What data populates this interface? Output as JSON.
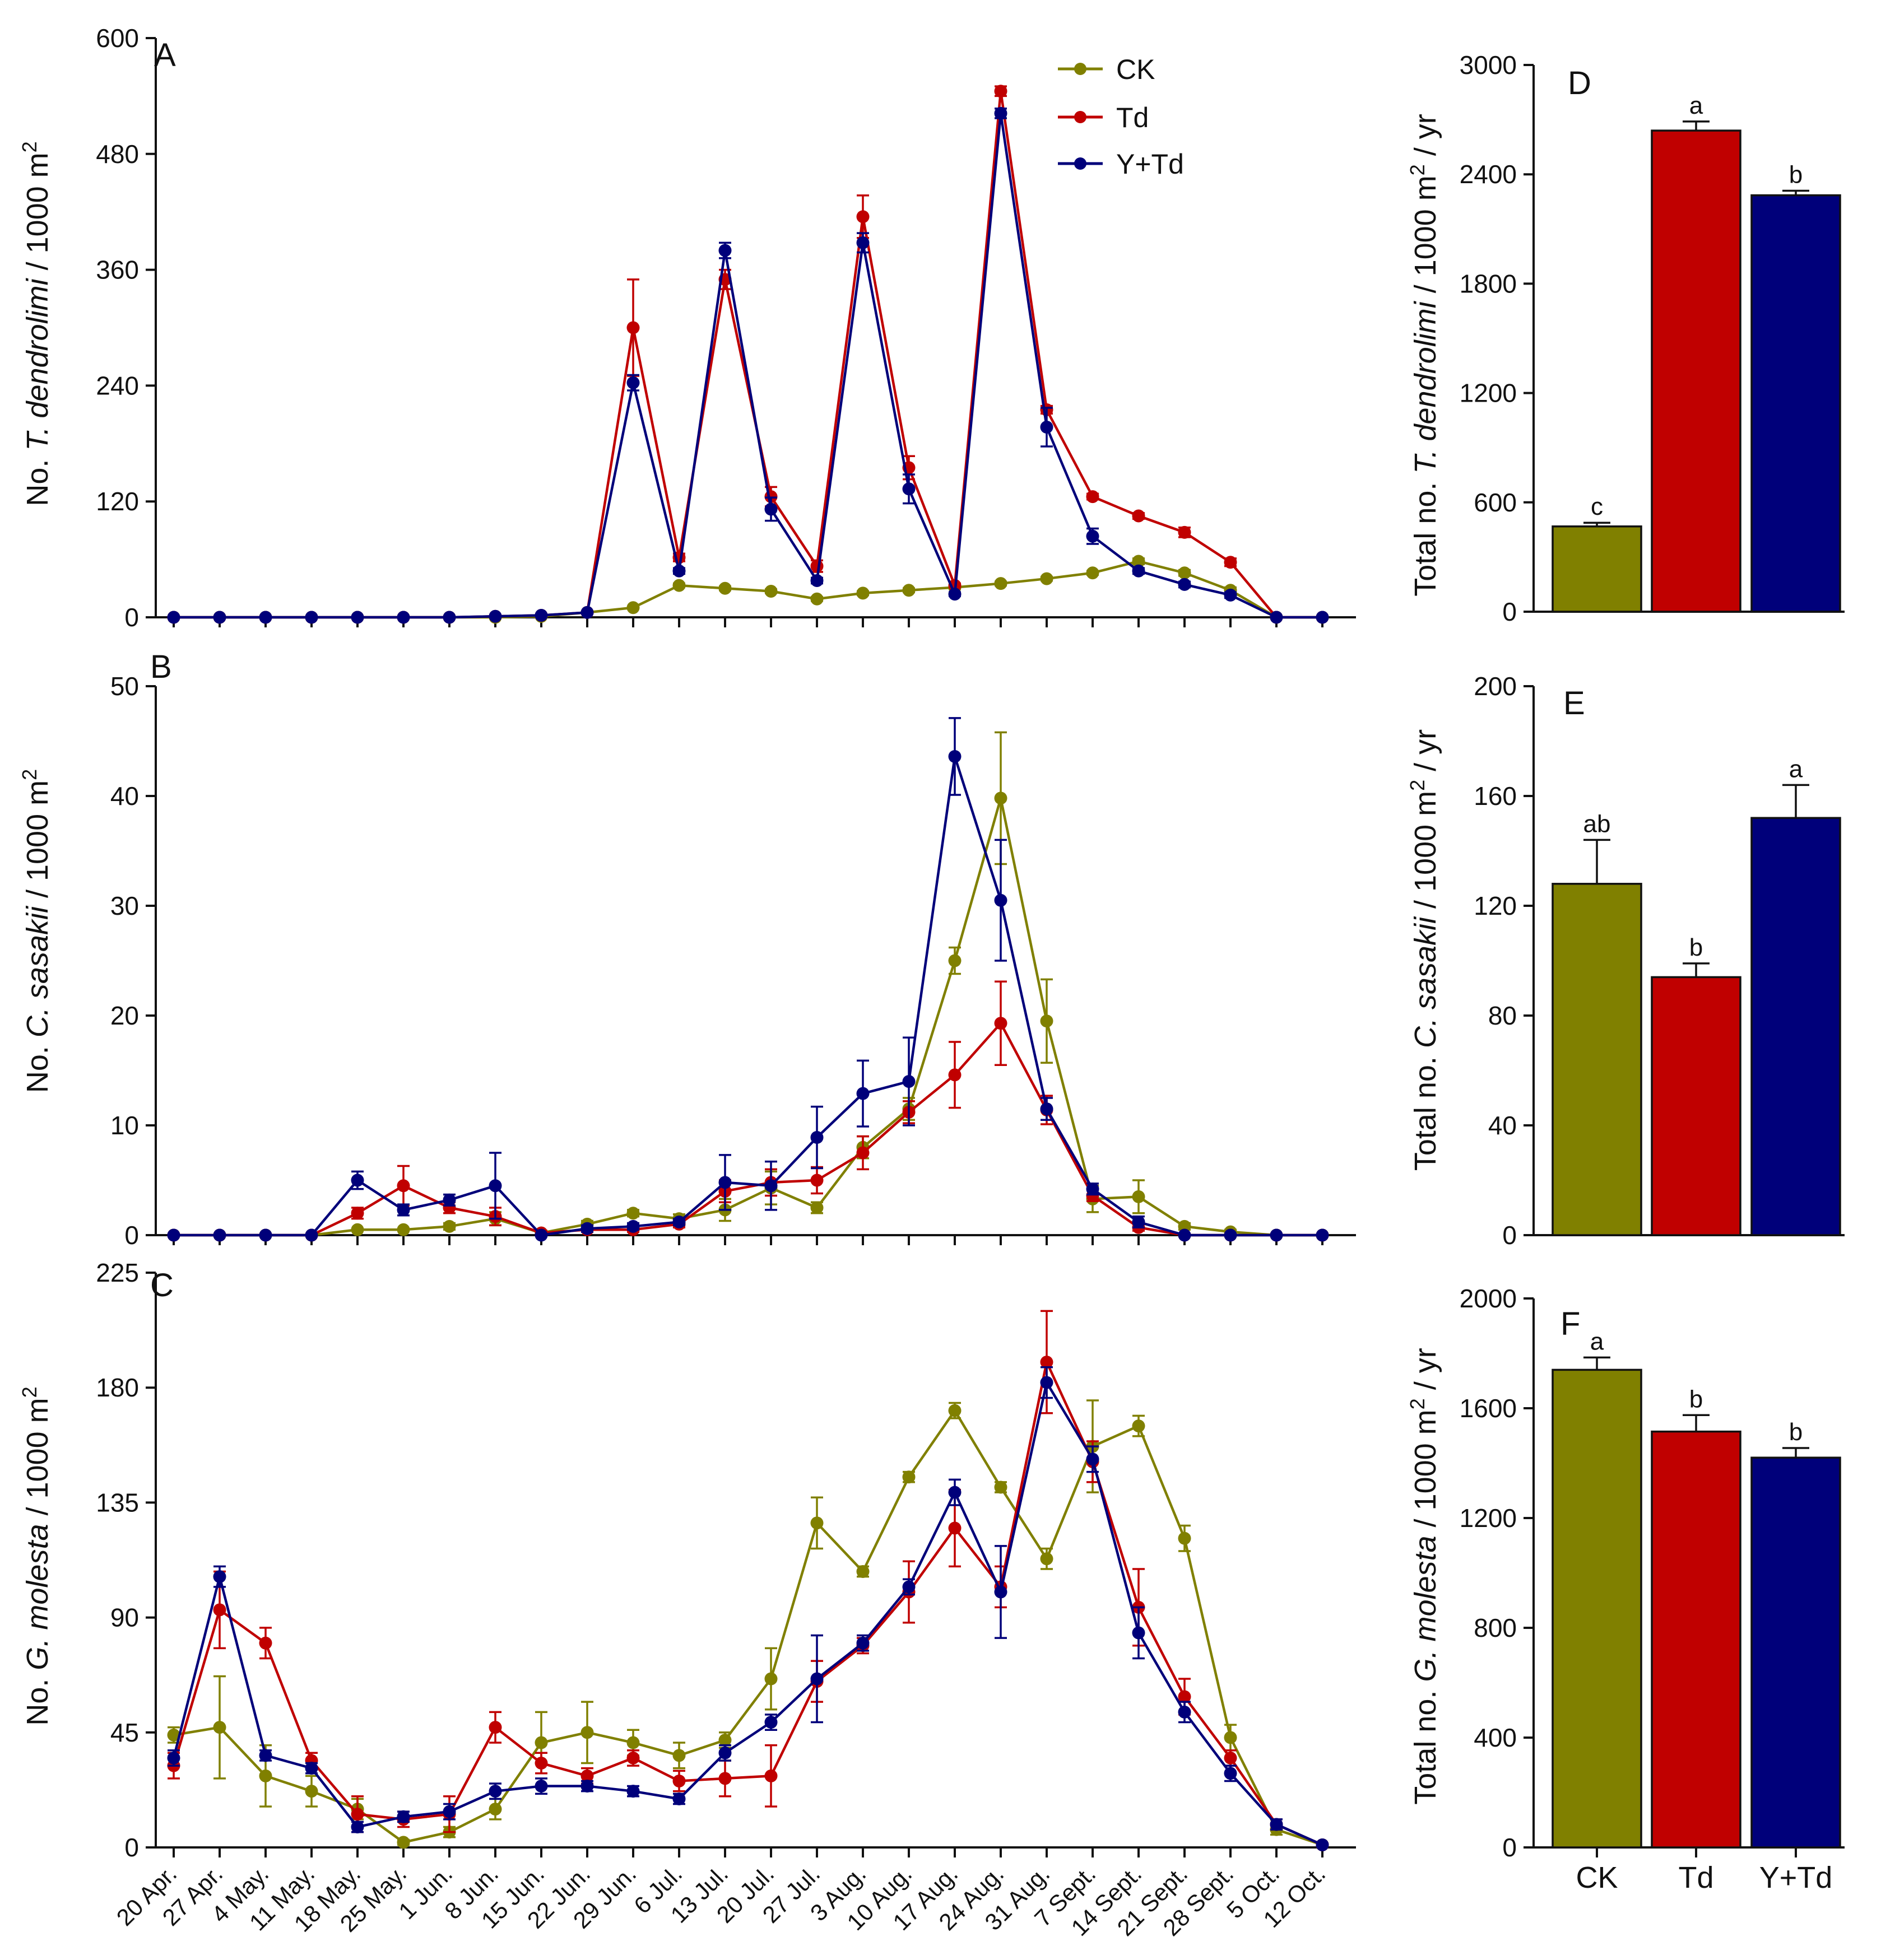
{
  "colors": {
    "CK": "#808000",
    "Td": "#c00000",
    "YTd": "#00007a",
    "axis": "#111111"
  },
  "legend": [
    "CK",
    "Td",
    "Y+Td"
  ],
  "dates": [
    "20 Apr.",
    "27 Apr.",
    "4 May.",
    "11 May.",
    "18 May.",
    "25 May.",
    "1 Jun.",
    "8 Jun.",
    "15 Jun.",
    "22 Jun.",
    "29 Jun.",
    "6 Jul.",
    "13 Jul.",
    "20 Jul.",
    "27 Jul.",
    "3 Aug.",
    "10 Aug.",
    "17 Aug.",
    "24 Aug.",
    "31 Aug.",
    "7 Sept.",
    "14 Sept.",
    "21 Sept.",
    "28 Sept.",
    "5 Oct.",
    "12 Oct."
  ],
  "bar_categories": [
    "CK",
    "Td",
    "Y+Td"
  ],
  "chart_data": [
    {
      "type": "line",
      "panel": "A",
      "ylabel_pre": "No. ",
      "ylabel_italic": "T. dendrolimi",
      "ylabel_post": " / 1000 m",
      "ylabel_sup": "2",
      "ylim": [
        0,
        600
      ],
      "yticks": [
        "0",
        "120",
        "240",
        "360",
        "480",
        "600"
      ],
      "series": [
        {
          "name": "CK",
          "values": [
            0,
            0,
            0,
            0,
            0,
            0,
            0,
            0,
            1,
            5,
            10,
            33,
            30,
            27,
            19,
            25,
            28,
            31,
            35,
            40,
            46,
            58,
            46,
            28,
            0,
            0
          ],
          "errors": [
            0,
            0,
            0,
            0,
            0,
            0,
            0,
            0,
            0,
            0,
            1,
            2,
            2,
            2,
            2,
            2,
            2,
            2,
            2,
            2,
            2,
            3,
            3,
            3,
            0,
            0
          ]
        },
        {
          "name": "Td",
          "values": [
            0,
            0,
            0,
            0,
            0,
            0,
            0,
            1,
            2,
            5,
            300,
            62,
            350,
            125,
            53,
            415,
            155,
            33,
            545,
            215,
            125,
            105,
            88,
            57,
            0,
            0
          ],
          "errors": [
            0,
            0,
            0,
            0,
            0,
            0,
            0,
            0,
            0,
            0,
            50,
            4,
            10,
            10,
            6,
            22,
            12,
            2,
            5,
            4,
            3,
            3,
            5,
            4,
            0,
            0
          ]
        },
        {
          "name": "Y+Td",
          "values": [
            0,
            0,
            0,
            0,
            0,
            0,
            0,
            1,
            2,
            5,
            243,
            48,
            380,
            112,
            38,
            388,
            133,
            24,
            522,
            197,
            84,
            48,
            34,
            23,
            0,
            0
          ],
          "errors": [
            0,
            0,
            0,
            0,
            0,
            0,
            0,
            0,
            0,
            0,
            8,
            3,
            8,
            12,
            3,
            10,
            15,
            2,
            5,
            20,
            8,
            3,
            3,
            3,
            0,
            0
          ]
        }
      ]
    },
    {
      "type": "line",
      "panel": "B",
      "ylabel_pre": "No. ",
      "ylabel_italic": "C. sasakii",
      "ylabel_post": " / 1000 m",
      "ylabel_sup": "2",
      "ylim": [
        0,
        50
      ],
      "yticks": [
        "0",
        "10",
        "20",
        "30",
        "40",
        "50"
      ],
      "series": [
        {
          "name": "CK",
          "values": [
            0,
            0,
            0,
            0,
            0.5,
            0.5,
            0.8,
            1.5,
            0.2,
            1.0,
            2.0,
            1.5,
            2.3,
            4.3,
            2.5,
            8.0,
            11.5,
            25.0,
            39.8,
            19.5,
            3.3,
            3.5,
            0.8,
            0.3,
            0,
            0
          ],
          "errors": [
            0,
            0,
            0,
            0,
            0,
            0,
            0.3,
            0.6,
            0.2,
            0.3,
            0.3,
            0.4,
            1.0,
            1.5,
            0.5,
            1.0,
            1.0,
            1.2,
            6.0,
            3.8,
            1.2,
            1.5,
            0.3,
            0.2,
            0,
            0
          ]
        },
        {
          "name": "Td",
          "values": [
            0,
            0,
            0,
            0,
            2.0,
            4.5,
            2.5,
            1.7,
            0.2,
            0.5,
            0.5,
            1.0,
            4.0,
            4.8,
            5.0,
            7.5,
            11.2,
            14.6,
            19.3,
            11.4,
            3.6,
            0.7,
            0,
            0,
            0,
            0
          ],
          "errors": [
            0,
            0,
            0,
            0,
            0.5,
            1.8,
            0.5,
            0.8,
            0.2,
            0.2,
            0.2,
            0.3,
            1.0,
            1.2,
            1.2,
            1.5,
            1.0,
            3.0,
            3.8,
            1.3,
            0.5,
            0.3,
            0,
            0,
            0,
            0
          ]
        },
        {
          "name": "Y+Td",
          "values": [
            0,
            0,
            0,
            0,
            5.0,
            2.3,
            3.2,
            4.5,
            0,
            0.6,
            0.8,
            1.2,
            4.8,
            4.5,
            8.9,
            12.9,
            14.0,
            43.6,
            30.5,
            11.5,
            4.2,
            1.2,
            0,
            0,
            0,
            0
          ],
          "errors": [
            0,
            0,
            0,
            0,
            0.8,
            0.5,
            0.5,
            3.0,
            0,
            0.3,
            0.3,
            0.3,
            2.5,
            2.2,
            2.8,
            3.0,
            4.0,
            3.5,
            5.5,
            1.0,
            0.5,
            0.5,
            0,
            0,
            0,
            0
          ]
        }
      ]
    },
    {
      "type": "line",
      "panel": "C",
      "ylabel_pre": "No. ",
      "ylabel_italic": "G. molesta",
      "ylabel_post": " / 1000 m",
      "ylabel_sup": "2",
      "ylim": [
        0,
        225
      ],
      "yticks": [
        "0",
        "45",
        "90",
        "135",
        "180",
        "225"
      ],
      "series": [
        {
          "name": "CK",
          "values": [
            44,
            47,
            28,
            22,
            15,
            2,
            6,
            15,
            41,
            45,
            41,
            36,
            42,
            66,
            127,
            108,
            145,
            171,
            141,
            113,
            157,
            165,
            121,
            43,
            7,
            1
          ],
          "errors": [
            3,
            20,
            12,
            6,
            4,
            1,
            2,
            4,
            12,
            12,
            5,
            5,
            3,
            12,
            10,
            2,
            2,
            3,
            2,
            4,
            18,
            4,
            5,
            5,
            2,
            0
          ]
        },
        {
          "name": "Td",
          "values": [
            32,
            93,
            80,
            34,
            13,
            11,
            13,
            47,
            33,
            28,
            35,
            26,
            27,
            28,
            65,
            79,
            100,
            125,
            102,
            190,
            151,
            94,
            59,
            35,
            9,
            1
          ],
          "errors": [
            5,
            15,
            6,
            3,
            7,
            3,
            7,
            6,
            4,
            3,
            3,
            4,
            7,
            12,
            8,
            3,
            12,
            15,
            8,
            20,
            8,
            15,
            7,
            3,
            2,
            0
          ]
        },
        {
          "name": "Y+Td",
          "values": [
            35,
            106,
            36,
            31,
            8,
            12,
            14,
            22,
            24,
            24,
            22,
            19,
            37,
            49,
            66,
            80,
            102,
            139,
            100,
            182,
            152,
            84,
            53,
            29,
            9,
            1
          ],
          "errors": [
            3,
            4,
            2,
            2,
            2,
            2,
            3,
            3,
            3,
            2,
            2,
            2,
            3,
            3,
            17,
            3,
            3,
            5,
            18,
            6,
            5,
            10,
            4,
            3,
            2,
            0
          ]
        }
      ]
    },
    {
      "type": "bar",
      "panel": "D",
      "ylabel_pre": "Total no. ",
      "ylabel_italic": "T. dendrolimi",
      "ylabel_post": " / 1000 m",
      "ylabel_sup": "2",
      "ylabel_tail": " / yr",
      "categories": [
        "CK",
        "Td",
        "Y+Td"
      ],
      "values": [
        468,
        2640,
        2285
      ],
      "errors": [
        20,
        50,
        25
      ],
      "letters": [
        "c",
        "a",
        "b"
      ],
      "ylim": [
        0,
        3000
      ],
      "yticks": [
        "0",
        "600",
        "1200",
        "1800",
        "2400",
        "3000"
      ]
    },
    {
      "type": "bar",
      "panel": "E",
      "ylabel_pre": "Total no. ",
      "ylabel_italic": "C. sasakii",
      "ylabel_post": " / 1000 m",
      "ylabel_sup": "2",
      "ylabel_tail": " / yr",
      "categories": [
        "CK",
        "Td",
        "Y+Td"
      ],
      "values": [
        128,
        94,
        152
      ],
      "errors": [
        16,
        5,
        12
      ],
      "letters": [
        "ab",
        "b",
        "a"
      ],
      "ylim": [
        0,
        200
      ],
      "yticks": [
        "0",
        "40",
        "80",
        "120",
        "160",
        "200"
      ]
    },
    {
      "type": "bar",
      "panel": "F",
      "ylabel_pre": "Total no. ",
      "ylabel_italic": "G. molesta",
      "ylabel_post": " / 1000 m",
      "ylabel_sup": "2",
      "ylabel_tail": " / yr",
      "categories": [
        "CK",
        "Td",
        "Y+Td"
      ],
      "values": [
        1740,
        1515,
        1420
      ],
      "errors": [
        45,
        60,
        35
      ],
      "letters": [
        "a",
        "b",
        "b"
      ],
      "ylim": [
        0,
        2000
      ],
      "yticks": [
        "0",
        "400",
        "800",
        "1200",
        "1600",
        "2000"
      ]
    }
  ]
}
